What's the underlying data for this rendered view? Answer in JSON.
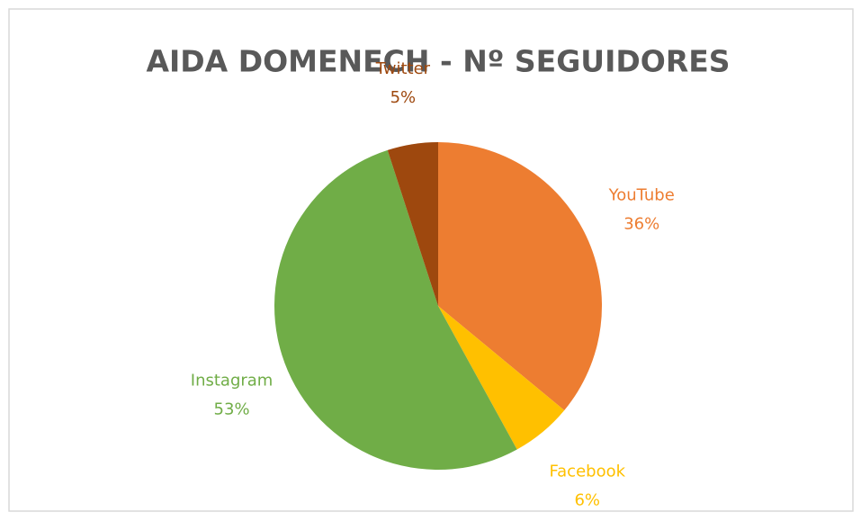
{
  "chart_data": {
    "type": "pie",
    "title": "AIDA DOMENECH - Nº SEGUIDORES",
    "categories": [
      "YouTube",
      "Facebook",
      "Instagram",
      "Twitter"
    ],
    "values": [
      36,
      6,
      53,
      5
    ],
    "value_labels": [
      "36%",
      "6%",
      "53%",
      "5%"
    ],
    "colors": [
      "#ed7d31",
      "#ffc000",
      "#70ad47",
      "#9e480e"
    ]
  }
}
